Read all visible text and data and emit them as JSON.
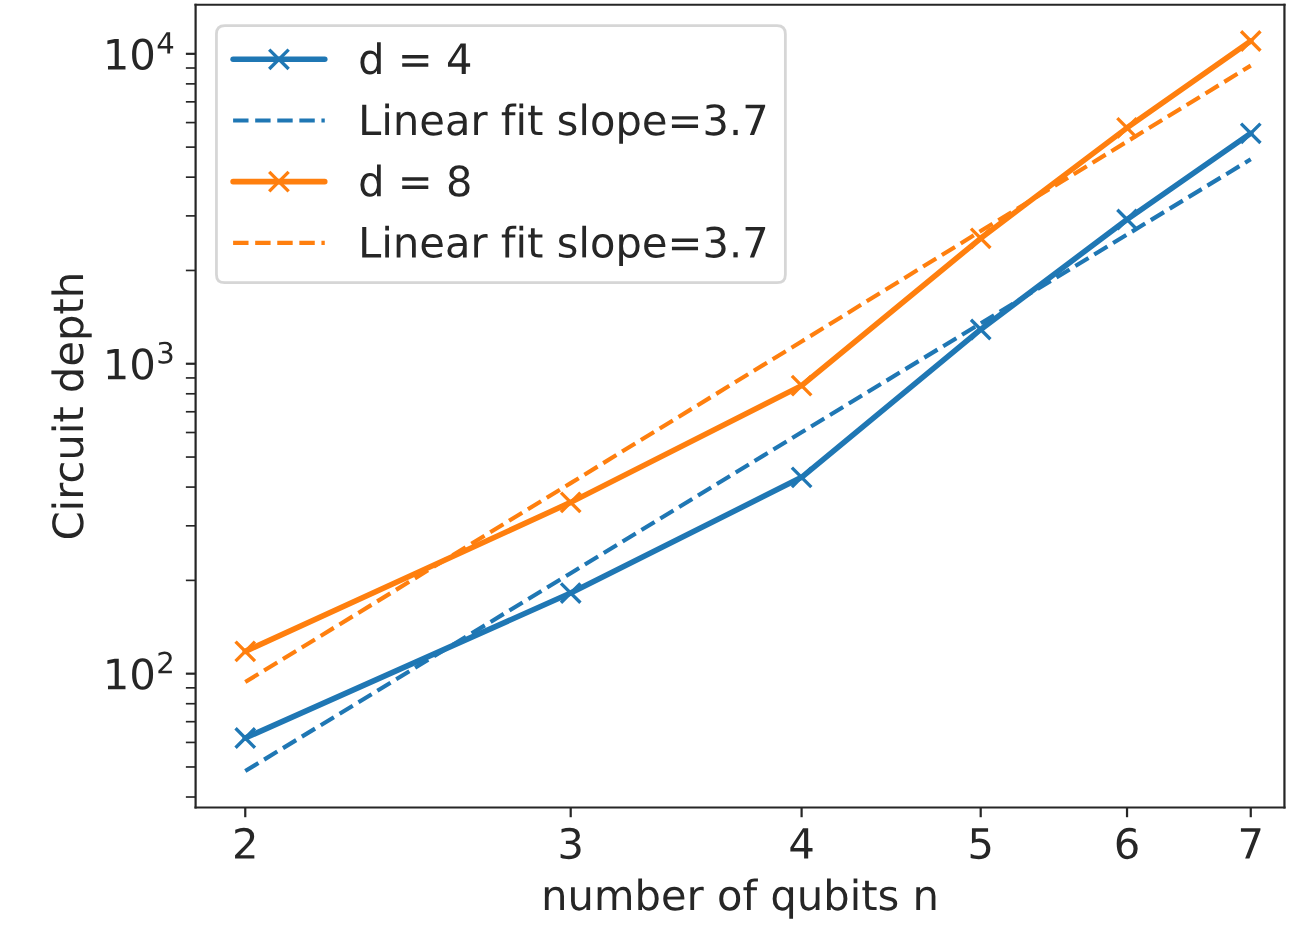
{
  "chart_data": {
    "type": "line",
    "xlabel": "number of qubits n",
    "ylabel": "Circuit depth",
    "log": "xy",
    "x": [
      2,
      3,
      4,
      5,
      6,
      7
    ],
    "series": [
      {
        "name": "d = 4",
        "color": "#1f77b4",
        "marker": "cross",
        "line_style": "solid",
        "values": [
          62,
          182,
          430,
          1290,
          2920,
          5540
        ]
      },
      {
        "name": "Linear fit slope=3.7",
        "color": "#1f77b4",
        "marker": "none",
        "line_style": "dashed",
        "values": [
          48.5,
          211,
          601,
          1350,
          2610,
          4570
        ]
      },
      {
        "name": "d = 8",
        "color": "#ff7f0e",
        "marker": "cross",
        "line_style": "solid",
        "values": [
          118,
          357,
          850,
          2540,
          5770,
          11000
        ]
      },
      {
        "name": "Linear fit slope=3.7",
        "color": "#ff7f0e",
        "marker": "none",
        "line_style": "dashed",
        "values": [
          94,
          412,
          1180,
          2680,
          5210,
          9160
        ]
      }
    ],
    "xlim": [
      1.88,
      7.3
    ],
    "xticks": [
      2,
      3,
      4,
      5,
      6,
      7
    ],
    "ylim": [
      37,
      14400
    ],
    "yticks": [
      {
        "value": 100,
        "label": "10$^{2}$"
      },
      {
        "value": 1000,
        "label": "10$^{3}$"
      },
      {
        "value": 10000,
        "label": "10$^{4}$"
      }
    ],
    "grid": false,
    "legend": "top left"
  }
}
